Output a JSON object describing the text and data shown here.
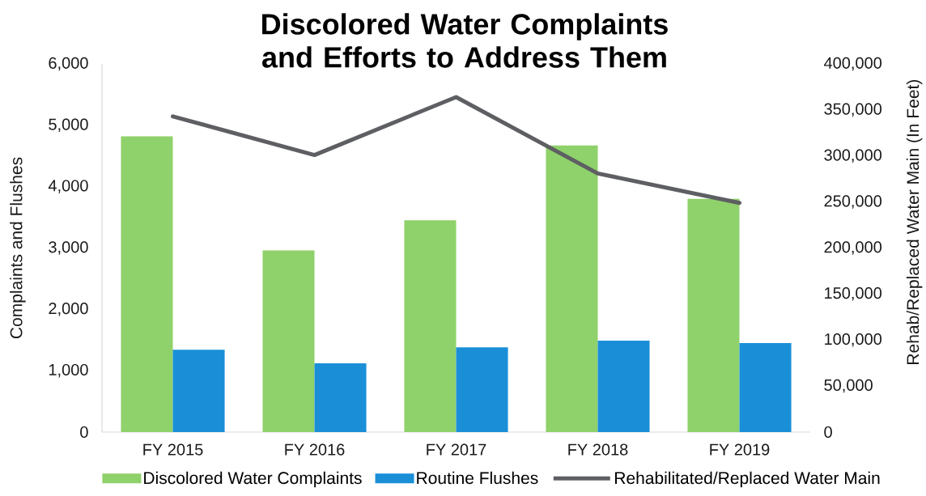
{
  "chart_data": {
    "type": "bar",
    "title": "Discolored Water Complaints and Efforts to Address Them",
    "ylabel": "Complaints and Flushes",
    "y2label": "Rehab/Replaced Water Main (In Feet)",
    "categories": [
      "FY 2015",
      "FY 2016",
      "FY 2017",
      "FY 2018",
      "FY 2019"
    ],
    "series": [
      {
        "name": "Discolored Water Complaints",
        "color": "#8fd16a",
        "values": [
          4820,
          2960,
          3450,
          4670,
          3800
        ]
      },
      {
        "name": "Routine Flushes",
        "color": "#1a8fd8",
        "values": [
          1340,
          1120,
          1380,
          1490,
          1450
        ]
      },
      {
        "name": "Rehabilitated/Replaced Water Main",
        "type": "line",
        "axis": "y2",
        "color": "#5e5f63",
        "values": [
          343000,
          301000,
          364000,
          281000,
          249000
        ]
      }
    ],
    "ylim": [
      0,
      6000
    ],
    "yticks": [
      0,
      {
        "value": 1000,
        "label": "1,000"
      },
      {
        "value": 2000,
        "label": "2,000"
      },
      {
        "value": 3000,
        "label": "3,000"
      },
      {
        "value": 4000,
        "label": "4,000"
      },
      {
        "value": 5000,
        "label": "5,000"
      },
      {
        "value": 6000,
        "label": "6,000"
      }
    ],
    "y2lim": [
      0,
      400000
    ],
    "y2ticks": [
      0,
      {
        "value": 50000,
        "label": "50,000"
      },
      {
        "value": 100000,
        "label": "100,000"
      },
      {
        "value": 150000,
        "label": "150,000"
      },
      {
        "value": 200000,
        "label": "200,000"
      },
      {
        "value": 250000,
        "label": "250,000"
      },
      {
        "value": 300000,
        "label": "300,000"
      },
      {
        "value": 350000,
        "label": "350,000"
      },
      {
        "value": 400000,
        "label": "400,000"
      }
    ],
    "legend": "bottom"
  }
}
